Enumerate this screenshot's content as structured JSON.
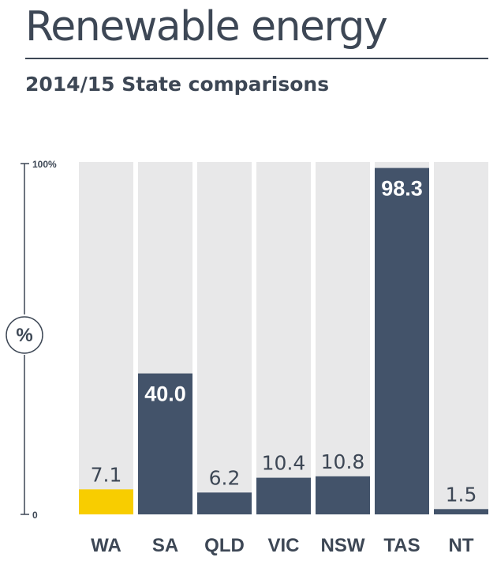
{
  "header": {
    "title": "Renewable energy",
    "subtitle": "2014/15 State comparisons"
  },
  "axis": {
    "top_label": "100%",
    "bottom_label": "0",
    "unit_label": "%"
  },
  "colors": {
    "highlight": "#f8cd00",
    "bar": "#43536a",
    "background_bar": "#e8e8e9",
    "text": "#3d4755"
  },
  "chart_data": {
    "type": "bar",
    "title": "Renewable energy",
    "subtitle": "2014/15 State comparisons",
    "ylabel": "%",
    "ylim": [
      0,
      100
    ],
    "categories": [
      "WA",
      "SA",
      "QLD",
      "VIC",
      "NSW",
      "TAS",
      "NT"
    ],
    "values": [
      7.1,
      40.0,
      6.2,
      10.4,
      10.8,
      98.3,
      1.5
    ],
    "value_labels": [
      "7.1",
      "40.0",
      "6.2",
      "10.4",
      "10.8",
      "98.3",
      "1.5"
    ],
    "highlighted": "WA"
  }
}
